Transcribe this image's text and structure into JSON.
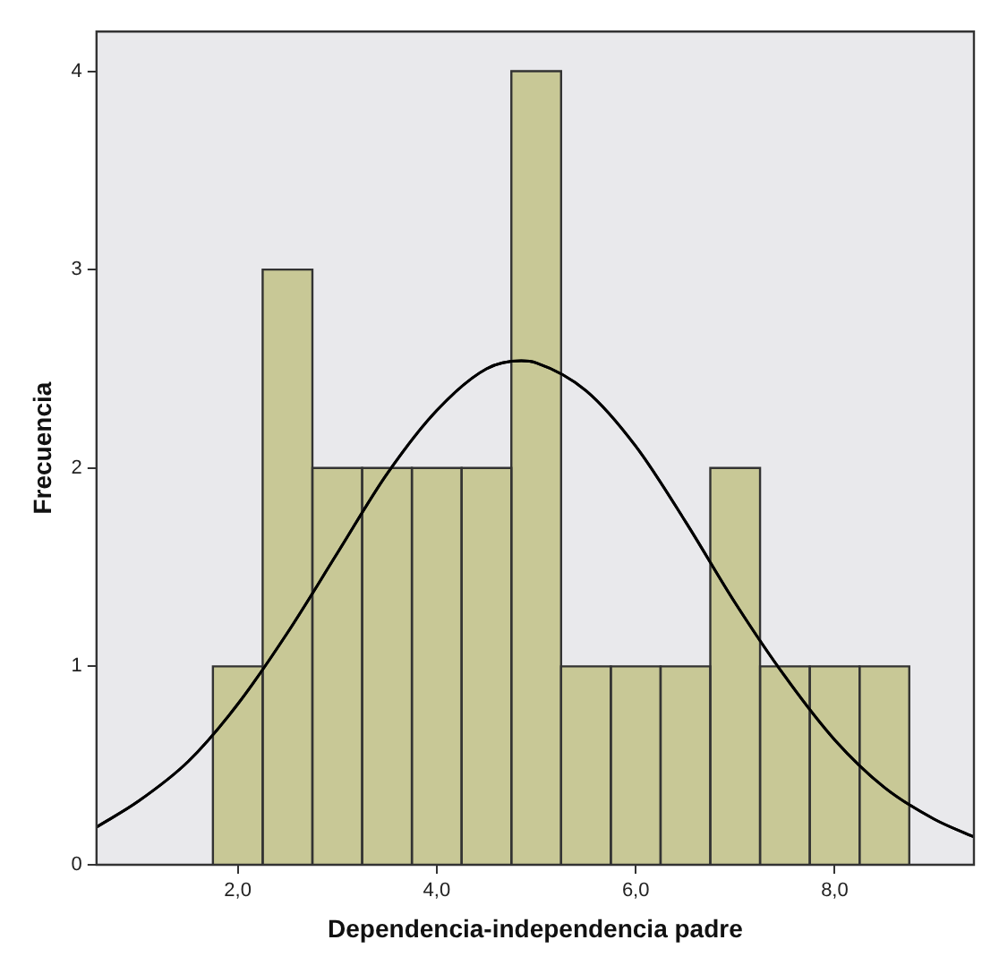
{
  "chart_data": {
    "type": "histogram",
    "xlabel": "Dependencia-independencia padre",
    "ylabel": "Frecuencia",
    "bins": [
      1.75,
      2.25,
      2.75,
      3.25,
      3.75,
      4.25,
      4.75,
      5.25,
      5.75,
      6.25,
      6.75,
      7.25,
      7.75,
      8.25,
      8.75
    ],
    "values": [
      1,
      3,
      2,
      2,
      2,
      2,
      4,
      1,
      1,
      1,
      2,
      1,
      1,
      1
    ],
    "color": "#c8c896",
    "series": [
      {
        "type": "line",
        "color": "#000000",
        "x": [
          0.58,
          1.0,
          1.5,
          2.0,
          2.5,
          3.0,
          3.5,
          4.0,
          4.5,
          4.85,
          5.0,
          5.5,
          6.0,
          6.5,
          7.0,
          7.5,
          8.0,
          8.5,
          9.0,
          9.4
        ],
        "values": [
          0.19,
          0.32,
          0.52,
          0.81,
          1.17,
          1.57,
          1.97,
          2.29,
          2.5,
          2.54,
          2.53,
          2.39,
          2.11,
          1.73,
          1.32,
          0.95,
          0.63,
          0.39,
          0.23,
          0.14
        ]
      }
    ],
    "xlim": [
      0.58,
      9.4
    ],
    "xticks": [
      {
        "value": 2,
        "label": "2,0"
      },
      {
        "value": 4,
        "label": "4,0"
      },
      {
        "value": 6,
        "label": "6,0"
      },
      {
        "value": 8,
        "label": "8,0"
      }
    ],
    "ylim": [
      0,
      4.2
    ],
    "yticks": [
      0,
      1,
      2,
      3,
      4
    ],
    "grid": false,
    "legend": false,
    "marker": "none",
    "line_style": "solid"
  }
}
